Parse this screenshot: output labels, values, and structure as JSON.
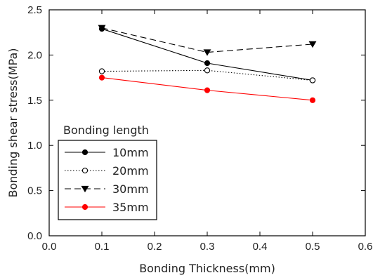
{
  "chart_data": {
    "type": "line",
    "xlabel": "Bonding Thickness(mm)",
    "ylabel": "Bonding shear stress(MPa)",
    "xlim": [
      0.0,
      0.6
    ],
    "ylim": [
      0.0,
      2.5
    ],
    "xticks": [
      "0.0",
      "0.1",
      "0.2",
      "0.3",
      "0.4",
      "0.5",
      "0.6"
    ],
    "yticks": [
      "0.0",
      "0.5",
      "1.0",
      "1.5",
      "2.0",
      "2.5"
    ],
    "grid": false,
    "legend": {
      "title": "Bonding length",
      "position": "lower-left"
    },
    "x": [
      0.1,
      0.3,
      0.5
    ],
    "series": [
      {
        "name": "10mm",
        "values": [
          2.29,
          1.91,
          1.72
        ],
        "color": "#000000",
        "line": "solid",
        "marker": "filled-circle"
      },
      {
        "name": "20mm",
        "values": [
          1.82,
          1.83,
          1.72
        ],
        "color": "#000000",
        "line": "dotted",
        "marker": "open-circle"
      },
      {
        "name": "30mm",
        "values": [
          2.3,
          2.03,
          2.12
        ],
        "color": "#000000",
        "line": "dashed",
        "marker": "filled-triangle-down"
      },
      {
        "name": "35mm",
        "values": [
          1.75,
          1.61,
          1.5
        ],
        "color": "#ff0000",
        "line": "solid",
        "marker": "filled-circle"
      }
    ]
  }
}
